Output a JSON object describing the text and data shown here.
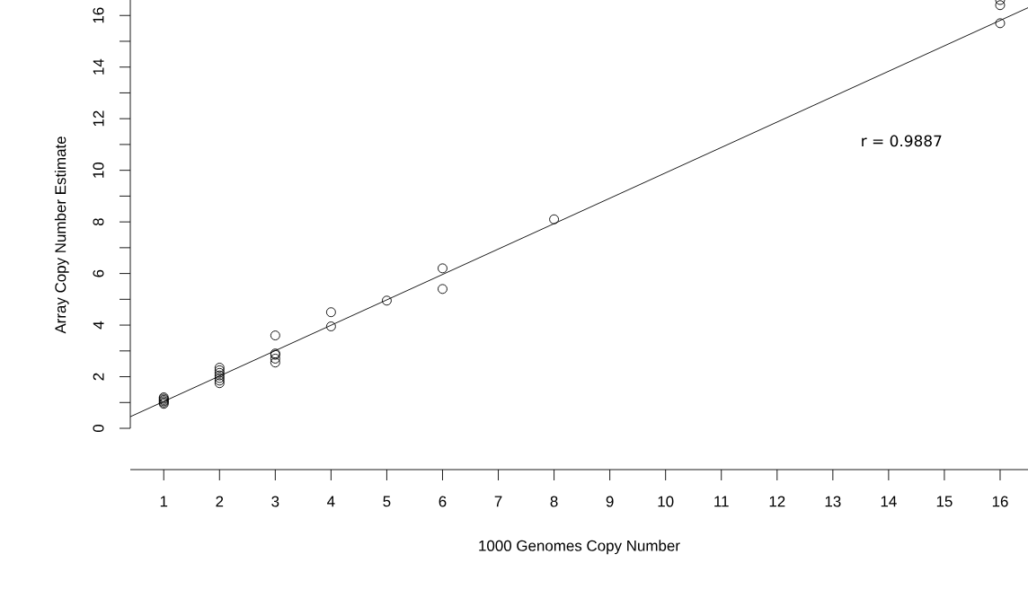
{
  "chart_data": {
    "type": "scatter",
    "xlabel": "1000 Genomes Copy Number",
    "ylabel": "Array Copy Number Estimate",
    "xlim": [
      0.4,
      16.5
    ],
    "ylim": [
      -1.6,
      16.6
    ],
    "xticks": [
      1,
      2,
      3,
      4,
      5,
      6,
      7,
      8,
      9,
      10,
      11,
      12,
      13,
      14,
      15,
      16
    ],
    "yticks": [
      0,
      {
        "value": 1,
        "label": null
      },
      2,
      {
        "value": 3,
        "label": null
      },
      4,
      {
        "value": 5,
        "label": null
      },
      6,
      {
        "value": 7,
        "label": null
      },
      8,
      {
        "value": 9,
        "label": null
      },
      10,
      {
        "value": 11,
        "label": null
      },
      12,
      {
        "value": 13,
        "label": null
      },
      14,
      {
        "value": 15,
        "label": null
      },
      16
    ],
    "grid": false,
    "marker": "circle",
    "series": [
      {
        "color": "#000000",
        "x": [
          1,
          1,
          1,
          1,
          1,
          1,
          2,
          2,
          2,
          2,
          2,
          2,
          2,
          3,
          3,
          3,
          3,
          3,
          4,
          4,
          5,
          6,
          6,
          8,
          16,
          16,
          16
        ],
        "values": [
          0.95,
          1.0,
          1.05,
          1.1,
          1.15,
          1.2,
          1.75,
          1.85,
          1.95,
          2.05,
          2.15,
          2.25,
          2.35,
          2.55,
          2.7,
          2.85,
          2.9,
          3.6,
          3.95,
          4.5,
          4.95,
          5.4,
          6.2,
          8.1,
          15.7,
          16.4,
          16.6
        ]
      },
      {
        "type": "line",
        "color": "#000000",
        "marker": "none",
        "line_style": "solid",
        "x": [
          0.4,
          16.5
        ],
        "values": [
          0.45,
          16.3
        ]
      }
    ],
    "annotations": [
      "r = 0.9887"
    ]
  }
}
